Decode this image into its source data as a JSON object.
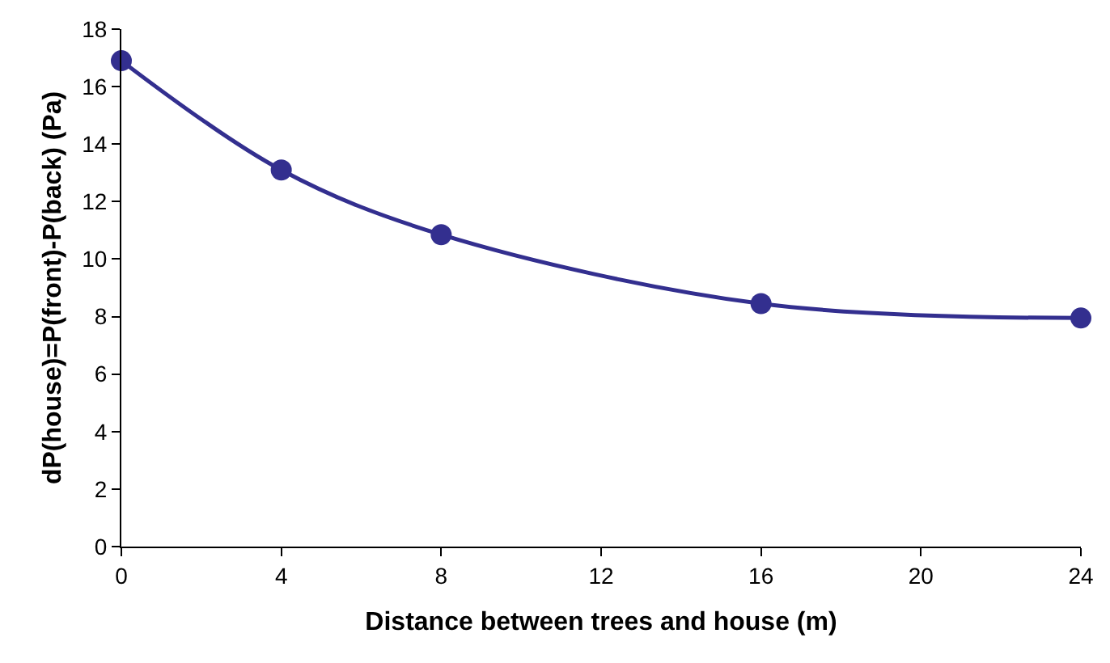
{
  "chart_data": {
    "type": "line",
    "xlabel": "Distance between trees and house (m)",
    "ylabel": "dP(house)=P(front)-P(back) (Pa)",
    "x": [
      0,
      4,
      8,
      16,
      24
    ],
    "series": [
      {
        "color": "#332f8f",
        "values": [
          16.9,
          13.1,
          10.85,
          8.45,
          7.95
        ]
      }
    ],
    "xlim": [
      0,
      24
    ],
    "xticks": [
      0,
      4,
      8,
      12,
      16,
      20,
      24
    ],
    "ylim": [
      0,
      18
    ],
    "yticks": [
      0,
      2,
      4,
      6,
      8,
      10,
      12,
      14,
      16,
      18
    ],
    "marker": "circle",
    "line_style": "solid"
  }
}
